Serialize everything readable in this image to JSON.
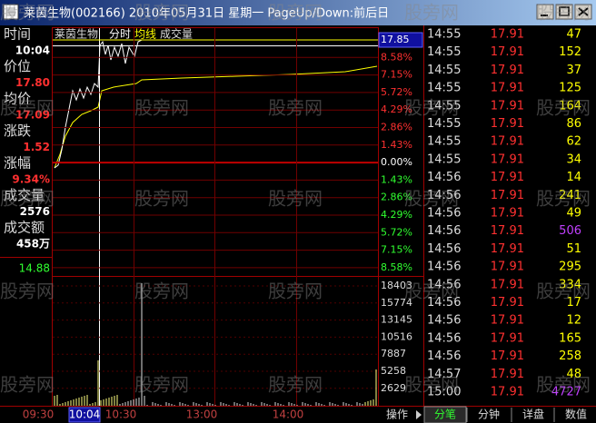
{
  "title_bar": {
    "title": "莱茵生物(002166)  2010年05月31日  星期一  PageUp/Down:前后日"
  },
  "watermark": "股旁网",
  "info_panel": [
    {
      "label": "时间",
      "value": "10:04"
    },
    {
      "label": "价位",
      "value": "17.80"
    },
    {
      "label": "均价",
      "value": "17.09"
    },
    {
      "label": "涨跌",
      "value": "1.52"
    },
    {
      "label": "涨幅",
      "value": "9.34%"
    },
    {
      "label": "成交量",
      "value": "2576"
    },
    {
      "label": "成交额",
      "value": "458万"
    }
  ],
  "info_extra": "14.88",
  "chart": {
    "legend": "莱茵生物",
    "modes": [
      "分时",
      "均线",
      "成交量"
    ],
    "price_labels": [
      "17.85",
      "8.58%",
      "7.15%",
      "5.72%",
      "4.29%",
      "2.86%",
      "1.43%",
      "0.00%",
      "1.43%",
      "2.86%",
      "4.29%",
      "5.72%",
      "7.15%",
      "8.58%"
    ],
    "volume_labels": [
      "18403",
      "15774",
      "13145",
      "10516",
      "7887",
      "5258",
      "2629"
    ],
    "time_labels": [
      "09:30",
      "10:04",
      "10:30",
      "13:00",
      "14:00"
    ]
  },
  "trades": [
    {
      "time": "14:55",
      "price": "17.91",
      "volume": "47",
      "volume_color": "#ffff00"
    },
    {
      "time": "14:55",
      "price": "17.91",
      "volume": "152",
      "volume_color": "#ffff00"
    },
    {
      "time": "14:55",
      "price": "17.91",
      "volume": "37",
      "volume_color": "#ffff00"
    },
    {
      "time": "14:55",
      "price": "17.91",
      "volume": "125",
      "volume_color": "#ffff00"
    },
    {
      "time": "14:55",
      "price": "17.91",
      "volume": "164",
      "volume_color": "#ffff00"
    },
    {
      "time": "14:55",
      "price": "17.91",
      "volume": "86",
      "volume_color": "#ffff00"
    },
    {
      "time": "14:55",
      "price": "17.91",
      "volume": "62",
      "volume_color": "#ffff00"
    },
    {
      "time": "14:55",
      "price": "17.91",
      "volume": "34",
      "volume_color": "#ffff00"
    },
    {
      "time": "14:56",
      "price": "17.91",
      "volume": "14",
      "volume_color": "#ffff00"
    },
    {
      "time": "14:56",
      "price": "17.91",
      "volume": "241",
      "volume_color": "#ffff00"
    },
    {
      "time": "14:56",
      "price": "17.91",
      "volume": "49",
      "volume_color": "#ffff00"
    },
    {
      "time": "14:56",
      "price": "17.91",
      "volume": "506",
      "volume_color": "#c040ff"
    },
    {
      "time": "14:56",
      "price": "17.91",
      "volume": "51",
      "volume_color": "#ffff00"
    },
    {
      "time": "14:56",
      "price": "17.91",
      "volume": "295",
      "volume_color": "#ffff00"
    },
    {
      "time": "14:56",
      "price": "17.91",
      "volume": "334",
      "volume_color": "#ffff00"
    },
    {
      "time": "14:56",
      "price": "17.91",
      "volume": "17",
      "volume_color": "#ffff00"
    },
    {
      "time": "14:56",
      "price": "17.91",
      "volume": "12",
      "volume_color": "#ffff00"
    },
    {
      "time": "14:56",
      "price": "17.91",
      "volume": "165",
      "volume_color": "#ffff00"
    },
    {
      "time": "14:56",
      "price": "17.91",
      "volume": "258",
      "volume_color": "#ffff00"
    },
    {
      "time": "14:57",
      "price": "17.91",
      "volume": "48",
      "volume_color": "#ffff00"
    },
    {
      "time": "15:00",
      "price": "17.91",
      "volume": "4727",
      "volume_color": "#c040ff"
    }
  ],
  "tabs": [
    "操作",
    "分笔",
    "分钟",
    "详盘",
    "数值"
  ]
}
